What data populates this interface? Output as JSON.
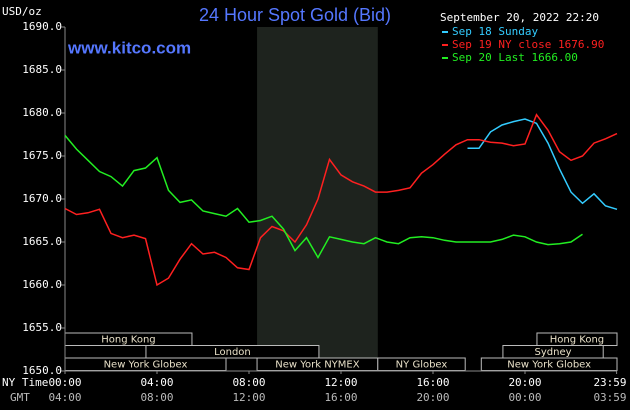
{
  "chart_data": {
    "type": "line",
    "title": "24 Hour Spot Gold (Bid)",
    "subtitle": "www.kitco.com",
    "y_label": "USD/oz",
    "legend_title": "September 20, 2022 22:20",
    "x_row_label": "NY Time",
    "x2_row_label": "GMT",
    "xlim": [
      0,
      24
    ],
    "ylim": [
      1650,
      1690
    ],
    "xticks": [
      {
        "value": 0,
        "label": "00:00"
      },
      {
        "value": 4,
        "label": "04:00"
      },
      {
        "value": 8,
        "label": "08:00"
      },
      {
        "value": 12,
        "label": "12:00"
      },
      {
        "value": 16,
        "label": "16:00"
      },
      {
        "value": 20,
        "label": "20:00"
      },
      {
        "value": 23.983,
        "label": "23:59"
      }
    ],
    "x2tick_labels": [
      "04:00",
      "08:00",
      "12:00",
      "16:00",
      "20:00",
      "00:00",
      "03:59"
    ],
    "yticks": [
      {
        "value": 1650,
        "label": "1650.0"
      },
      {
        "value": 1655,
        "label": "1655.0"
      },
      {
        "value": 1660,
        "label": "1660.0"
      },
      {
        "value": 1665,
        "label": "1665.0"
      },
      {
        "value": 1670,
        "label": "1670.0"
      },
      {
        "value": 1675,
        "label": "1675.0"
      },
      {
        "value": 1680,
        "label": "1680.0"
      },
      {
        "value": 1685,
        "label": "1685.0"
      },
      {
        "value": 1690,
        "label": "1690.0"
      }
    ],
    "shaded_region": [
      8.35,
      13.6
    ],
    "sessions": [
      {
        "label": "Hong Kong",
        "start": 0,
        "end": 5.52,
        "row": 0
      },
      {
        "label": "Hong Kong",
        "start": 20.52,
        "end": 24,
        "row": 0
      },
      {
        "label": "London",
        "start": 3.52,
        "end": 11.04,
        "row": 1
      },
      {
        "label": "Sydney",
        "start": 19.04,
        "end": 23.4,
        "row": 1
      },
      {
        "label": "New York Globex",
        "start": 0,
        "end": 7.0,
        "row": 2
      },
      {
        "label": "New York NYMEX",
        "start": 8.35,
        "end": 13.6,
        "row": 2
      },
      {
        "label": "NY Globex",
        "start": 13.6,
        "end": 17.4,
        "row": 2
      },
      {
        "label": "New York Globex",
        "start": 18.1,
        "end": 24,
        "row": 2
      }
    ],
    "x": [
      0,
      0.5,
      1,
      1.5,
      2,
      2.5,
      3,
      3.5,
      4,
      4.5,
      5,
      5.5,
      6,
      6.5,
      7,
      7.5,
      8,
      8.5,
      9,
      9.5,
      10,
      10.5,
      11,
      11.5,
      12,
      12.5,
      13,
      13.5,
      14,
      14.5,
      15,
      15.5,
      16,
      16.5,
      17,
      17.5,
      18,
      18.5,
      19,
      19.5,
      20,
      20.5,
      21,
      21.5,
      22,
      22.5,
      23,
      23.5,
      24
    ],
    "series": [
      {
        "name": "Sep 18 Sunday",
        "color": "#33ccff",
        "values": [
          null,
          null,
          null,
          null,
          null,
          null,
          null,
          null,
          null,
          null,
          null,
          null,
          null,
          null,
          null,
          null,
          null,
          null,
          null,
          null,
          null,
          null,
          null,
          null,
          null,
          null,
          null,
          null,
          null,
          null,
          null,
          null,
          null,
          null,
          null,
          1675.9,
          1675.9,
          1677.8,
          1678.6,
          1679.0,
          1679.3,
          1678.8,
          1676.5,
          1673.5,
          1670.8,
          1669.5,
          1670.6,
          1669.2,
          1668.8
        ]
      },
      {
        "name": "Sep 19 NY close 1676.90",
        "color": "#ff2020",
        "values": [
          1668.9,
          1668.2,
          1668.4,
          1668.8,
          1666.0,
          1665.5,
          1665.8,
          1665.4,
          1660.0,
          1660.8,
          1663.0,
          1664.8,
          1663.6,
          1663.8,
          1663.2,
          1662.0,
          1661.8,
          1665.5,
          1666.8,
          1666.3,
          1665.0,
          1667.0,
          1670.0,
          1674.6,
          1672.8,
          1672.0,
          1671.5,
          1670.8,
          1670.8,
          1671.0,
          1671.3,
          1673.0,
          1674.0,
          1675.2,
          1676.3,
          1676.9,
          1676.9,
          1676.6,
          1676.5,
          1676.2,
          1676.4,
          1679.8,
          1678.0,
          1675.5,
          1674.5,
          1675.0,
          1676.5,
          1677.0,
          1677.6
        ]
      },
      {
        "name": "Sep 20 Last 1666.00",
        "color": "#22ee22",
        "values": [
          1677.4,
          1675.8,
          1674.5,
          1673.2,
          1672.6,
          1671.5,
          1673.3,
          1673.6,
          1674.8,
          1671.0,
          1669.6,
          1669.9,
          1668.6,
          1668.3,
          1668.0,
          1668.9,
          1667.3,
          1667.5,
          1668.0,
          1666.5,
          1664.0,
          1665.5,
          1663.2,
          1665.6,
          1665.3,
          1665.0,
          1664.8,
          1665.5,
          1665.0,
          1664.8,
          1665.5,
          1665.6,
          1665.5,
          1665.2,
          1665.0,
          1665.0,
          1665.0,
          1665.0,
          1665.3,
          1665.8,
          1665.6,
          1665.0,
          1664.7,
          1664.8,
          1665.0,
          1665.9,
          null,
          null,
          null
        ]
      }
    ]
  }
}
